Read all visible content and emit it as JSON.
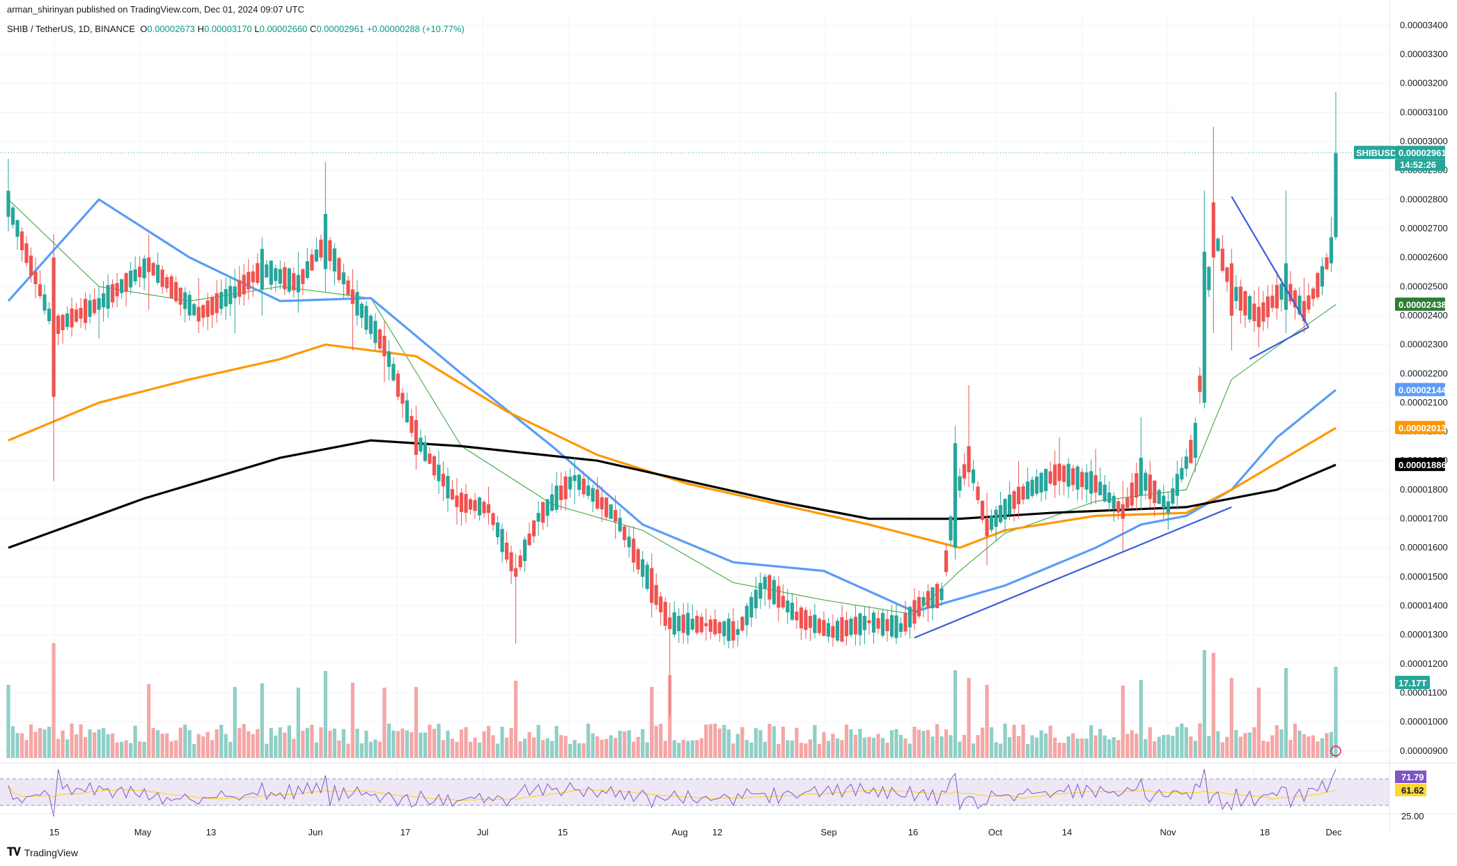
{
  "header": {
    "author": "arman_shirinyan published on TradingView.com, Dec 01, 2024 09:07 UTC"
  },
  "legend": {
    "symbol": "SHIB / TetherUS, 1D, BINANCE",
    "o_label": "O",
    "o": "0.00002673",
    "h_label": "H",
    "h": "0.00003170",
    "l_label": "L",
    "l": "0.00002660",
    "c_label": "C",
    "c": "0.00002961",
    "change": "+0.00000288 (+10.77%)"
  },
  "footer": {
    "brand": "TradingView"
  },
  "colors": {
    "up": "#26a69a",
    "down": "#ef5350",
    "up_vol": "#8fcfc6",
    "down_vol": "#f5a6a6",
    "ma_fast": "#4caf50",
    "ma_blue": "#5b9cf6",
    "ma_orange": "#ff9800",
    "ma_black": "#000000",
    "trend": "#3b5bdb",
    "rsi_line": "#7e57c2",
    "rsi_ma": "#fdd835",
    "rsi_band": "#ede7f6"
  },
  "chart_data": {
    "type": "candlestick",
    "price_axis": {
      "ticks": [
        "0.00003400",
        "0.00003300",
        "0.00003200",
        "0.00003100",
        "0.00003000",
        "0.00002900",
        "0.00002800",
        "0.00002700",
        "0.00002600",
        "0.00002500",
        "0.00002400",
        "0.00002300",
        "0.00002200",
        "0.00002100",
        "0.00002000",
        "0.00001900",
        "0.00001800",
        "0.00001700",
        "0.00001600",
        "0.00001500",
        "0.00001400",
        "0.00001300",
        "0.00001200",
        "0.00001100",
        "0.00001000",
        "0.00000900"
      ],
      "range": [
        8.9e-06,
        3.42e-05
      ]
    },
    "time_axis": [
      "15",
      "May",
      "13",
      "Jun",
      "17",
      "Jul",
      "15",
      "Aug",
      "12",
      "Sep",
      "16",
      "Oct",
      "14",
      "Nov",
      "18",
      "Dec"
    ],
    "key_points": [
      {
        "day": 0,
        "o": 27.4,
        "h": 29.4,
        "l": 26.9,
        "c": 28.3
      },
      {
        "day": 10,
        "o": 26.0,
        "h": 26.8,
        "l": 18.3,
        "c": 21.2
      },
      {
        "day": 20,
        "o": 24.2,
        "h": 25.0,
        "l": 23.2,
        "c": 24.6
      },
      {
        "day": 31,
        "o": 26.0,
        "h": 26.8,
        "l": 24.2,
        "c": 25.5
      },
      {
        "day": 42,
        "o": 24.3,
        "h": 25.3,
        "l": 23.4,
        "c": 23.8
      },
      {
        "day": 50,
        "o": 24.6,
        "h": 25.6,
        "l": 23.4,
        "c": 25.0
      },
      {
        "day": 56,
        "o": 24.9,
        "h": 26.7,
        "l": 24.0,
        "c": 26.3
      },
      {
        "day": 64,
        "o": 24.8,
        "h": 26.2,
        "l": 24.1,
        "c": 25.4
      },
      {
        "day": 70,
        "o": 25.6,
        "h": 29.3,
        "l": 24.8,
        "c": 27.5
      },
      {
        "day": 76,
        "o": 24.9,
        "h": 25.6,
        "l": 22.8,
        "c": 24.4
      },
      {
        "day": 83,
        "o": 23.3,
        "h": 23.8,
        "l": 21.7,
        "c": 22.6
      },
      {
        "day": 90,
        "o": 20.4,
        "h": 20.9,
        "l": 18.7,
        "c": 19.2
      },
      {
        "day": 99,
        "o": 17.8,
        "h": 18.4,
        "l": 16.8,
        "c": 17.4
      },
      {
        "day": 106,
        "o": 17.5,
        "h": 18.1,
        "l": 16.8,
        "c": 17.2
      },
      {
        "day": 112,
        "o": 15.3,
        "h": 15.8,
        "l": 12.7,
        "c": 15.0
      },
      {
        "day": 117,
        "o": 16.9,
        "h": 17.6,
        "l": 16.4,
        "c": 17.2
      },
      {
        "day": 125,
        "o": 18.3,
        "h": 19.1,
        "l": 17.5,
        "c": 18.5
      },
      {
        "day": 134,
        "o": 17.3,
        "h": 17.8,
        "l": 16.3,
        "c": 16.9
      },
      {
        "day": 142,
        "o": 15.3,
        "h": 15.8,
        "l": 13.6,
        "c": 14.1
      },
      {
        "day": 146,
        "o": 13.6,
        "h": 14.1,
        "l": 10.2,
        "c": 13.2
      },
      {
        "day": 154,
        "o": 13.4,
        "h": 13.9,
        "l": 12.8,
        "c": 13.3
      },
      {
        "day": 161,
        "o": 13.0,
        "h": 13.5,
        "l": 12.6,
        "c": 13.2
      },
      {
        "day": 167,
        "o": 14.6,
        "h": 15.1,
        "l": 14.0,
        "c": 15.0
      },
      {
        "day": 174,
        "o": 13.8,
        "h": 14.3,
        "l": 13.2,
        "c": 13.5
      },
      {
        "day": 182,
        "o": 13.3,
        "h": 13.7,
        "l": 12.6,
        "c": 12.9
      },
      {
        "day": 190,
        "o": 13.5,
        "h": 14.0,
        "l": 13.0,
        "c": 13.4
      },
      {
        "day": 197,
        "o": 13.1,
        "h": 13.6,
        "l": 12.9,
        "c": 13.4
      },
      {
        "day": 202,
        "o": 14.0,
        "h": 14.5,
        "l": 13.6,
        "c": 14.3
      },
      {
        "day": 206,
        "o": 14.2,
        "h": 14.8,
        "l": 14.0,
        "c": 14.6
      },
      {
        "day": 209,
        "o": 16.0,
        "h": 20.2,
        "l": 15.6,
        "c": 19.6
      },
      {
        "day": 212,
        "o": 19.5,
        "h": 21.6,
        "l": 18.1,
        "c": 18.6
      },
      {
        "day": 216,
        "o": 17.0,
        "h": 17.9,
        "l": 15.4,
        "c": 16.4
      },
      {
        "day": 223,
        "o": 18.1,
        "h": 19.0,
        "l": 17.0,
        "c": 17.5
      },
      {
        "day": 232,
        "o": 18.9,
        "h": 19.8,
        "l": 17.8,
        "c": 18.3
      },
      {
        "day": 240,
        "o": 18.5,
        "h": 19.4,
        "l": 17.5,
        "c": 17.9
      },
      {
        "day": 246,
        "o": 17.5,
        "h": 18.3,
        "l": 15.9,
        "c": 17.0
      },
      {
        "day": 250,
        "o": 17.8,
        "h": 20.5,
        "l": 17.3,
        "c": 19.1
      },
      {
        "day": 256,
        "o": 17.2,
        "h": 17.9,
        "l": 16.6,
        "c": 17.6
      },
      {
        "day": 262,
        "o": 19.1,
        "h": 20.5,
        "l": 18.6,
        "c": 20.3
      },
      {
        "day": 264,
        "o": 21.0,
        "h": 28.3,
        "l": 20.8,
        "c": 26.2
      },
      {
        "day": 266,
        "o": 27.9,
        "h": 30.5,
        "l": 23.4,
        "c": 26.0
      },
      {
        "day": 270,
        "o": 25.8,
        "h": 26.3,
        "l": 22.8,
        "c": 24.0
      },
      {
        "day": 276,
        "o": 24.3,
        "h": 25.0,
        "l": 22.9,
        "c": 23.6
      },
      {
        "day": 282,
        "o": 24.2,
        "h": 28.3,
        "l": 23.4,
        "c": 25.8
      },
      {
        "day": 286,
        "o": 24.5,
        "h": 25.3,
        "l": 23.4,
        "c": 23.8
      },
      {
        "day": 290,
        "o": 25.0,
        "h": 26.0,
        "l": 24.7,
        "c": 25.7
      },
      {
        "day": 292,
        "o": 25.8,
        "h": 27.4,
        "l": 25.5,
        "c": 26.7
      },
      {
        "day": 293,
        "o": 26.7,
        "h": 31.7,
        "l": 26.6,
        "c": 29.6
      }
    ],
    "moving_averages": [
      {
        "color": "ma_fast",
        "points": [
          [
            0,
            28.0
          ],
          [
            20,
            25.0
          ],
          [
            40,
            24.5
          ],
          [
            60,
            25.0
          ],
          [
            80,
            24.6
          ],
          [
            100,
            19.5
          ],
          [
            120,
            17.5
          ],
          [
            140,
            16.6
          ],
          [
            160,
            14.8
          ],
          [
            180,
            14.2
          ],
          [
            200,
            13.7
          ],
          [
            210,
            15.2
          ],
          [
            220,
            16.5
          ],
          [
            240,
            17.6
          ],
          [
            250,
            17.8
          ],
          [
            260,
            18.0
          ],
          [
            270,
            21.8
          ],
          [
            285,
            23.5
          ],
          [
            293,
            24.38
          ]
        ],
        "badge": "0.00002438"
      },
      {
        "color": "ma_blue",
        "points": [
          [
            0,
            24.5
          ],
          [
            20,
            28.0
          ],
          [
            40,
            26.0
          ],
          [
            60,
            24.5
          ],
          [
            80,
            24.6
          ],
          [
            100,
            22.0
          ],
          [
            120,
            19.5
          ],
          [
            140,
            16.8
          ],
          [
            160,
            15.5
          ],
          [
            180,
            15.2
          ],
          [
            200,
            13.8
          ],
          [
            220,
            14.7
          ],
          [
            240,
            16.0
          ],
          [
            250,
            16.8
          ],
          [
            260,
            17.1
          ],
          [
            270,
            18.0
          ],
          [
            280,
            19.8
          ],
          [
            293,
            21.44
          ]
        ],
        "badge": "0.00002144"
      },
      {
        "color": "ma_orange",
        "points": [
          [
            0,
            19.7
          ],
          [
            20,
            21.0
          ],
          [
            40,
            21.8
          ],
          [
            60,
            22.5
          ],
          [
            70,
            23.0
          ],
          [
            90,
            22.6
          ],
          [
            110,
            20.7
          ],
          [
            130,
            19.2
          ],
          [
            150,
            18.2
          ],
          [
            170,
            17.5
          ],
          [
            190,
            16.8
          ],
          [
            210,
            16.0
          ],
          [
            220,
            16.6
          ],
          [
            240,
            17.1
          ],
          [
            260,
            17.2
          ],
          [
            270,
            18.0
          ],
          [
            293,
            20.13
          ]
        ],
        "badge": "0.00002013"
      },
      {
        "color": "ma_black",
        "points": [
          [
            0,
            16.0
          ],
          [
            30,
            17.7
          ],
          [
            60,
            19.1
          ],
          [
            80,
            19.7
          ],
          [
            100,
            19.5
          ],
          [
            130,
            19.0
          ],
          [
            150,
            18.3
          ],
          [
            170,
            17.6
          ],
          [
            190,
            17.0
          ],
          [
            210,
            17.0
          ],
          [
            230,
            17.2
          ],
          [
            260,
            17.4
          ],
          [
            280,
            18.0
          ],
          [
            293,
            18.86
          ]
        ],
        "badge": "0.00001886"
      }
    ],
    "price_line": {
      "value": 29.61,
      "label": "SHIBUSDT",
      "price": "0.00002961",
      "countdown": "14:52:26"
    },
    "volume_badge": "17.17T",
    "trendlines": [
      {
        "from": [
          200,
          12.9
        ],
        "to": [
          270,
          17.4
        ]
      },
      {
        "from": [
          270,
          28.1
        ],
        "to": [
          287,
          23.6
        ]
      },
      {
        "from": [
          274,
          22.5
        ],
        "to": [
          287,
          23.6
        ]
      }
    ],
    "rsi": {
      "badge_rsi": "71.79",
      "badge_ma": "61.62",
      "level_label": "25.00"
    }
  }
}
